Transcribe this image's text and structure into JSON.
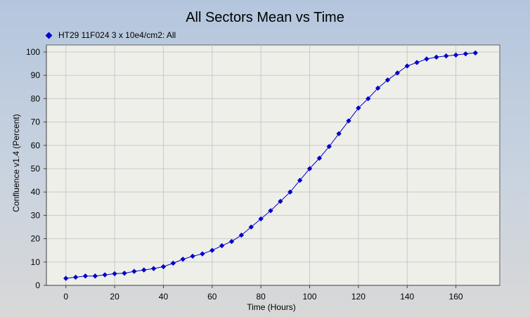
{
  "chart_data": {
    "type": "line",
    "title": "All Sectors Mean vs Time",
    "xlabel": "Time (Hours)",
    "ylabel": "Confluence v1.4 (Percent)",
    "xlim": [
      -8,
      178
    ],
    "ylim": [
      0,
      103
    ],
    "xticks": [
      0,
      20,
      40,
      60,
      80,
      100,
      120,
      140,
      160
    ],
    "yticks": [
      0,
      10,
      20,
      30,
      40,
      50,
      60,
      70,
      80,
      90,
      100
    ],
    "grid": true,
    "legend_position": "top-left",
    "series": [
      {
        "name": "HT29   11F024  3 x 10e4/cm2: All",
        "color": "#0000cc",
        "x": [
          0,
          4,
          8,
          12,
          16,
          20,
          24,
          28,
          32,
          36,
          40,
          44,
          48,
          52,
          56,
          60,
          64,
          68,
          72,
          76,
          80,
          84,
          88,
          92,
          96,
          100,
          104,
          108,
          112,
          116,
          120,
          124,
          128,
          132,
          136,
          140,
          144,
          148,
          152,
          156,
          160,
          164,
          168
        ],
        "y": [
          3.0,
          3.5,
          4.0,
          4.0,
          4.5,
          5.0,
          5.2,
          6.0,
          6.6,
          7.2,
          8.0,
          9.5,
          11.2,
          12.5,
          13.5,
          15.0,
          17.0,
          18.8,
          21.5,
          25.0,
          28.5,
          32.0,
          36.0,
          40.0,
          45.0,
          50.0,
          54.5,
          59.5,
          65.0,
          70.5,
          76.0,
          80.0,
          84.5,
          88.0,
          91.0,
          94.0,
          95.5,
          97.0,
          97.8,
          98.3,
          98.7,
          99.2,
          99.6
        ]
      }
    ]
  }
}
